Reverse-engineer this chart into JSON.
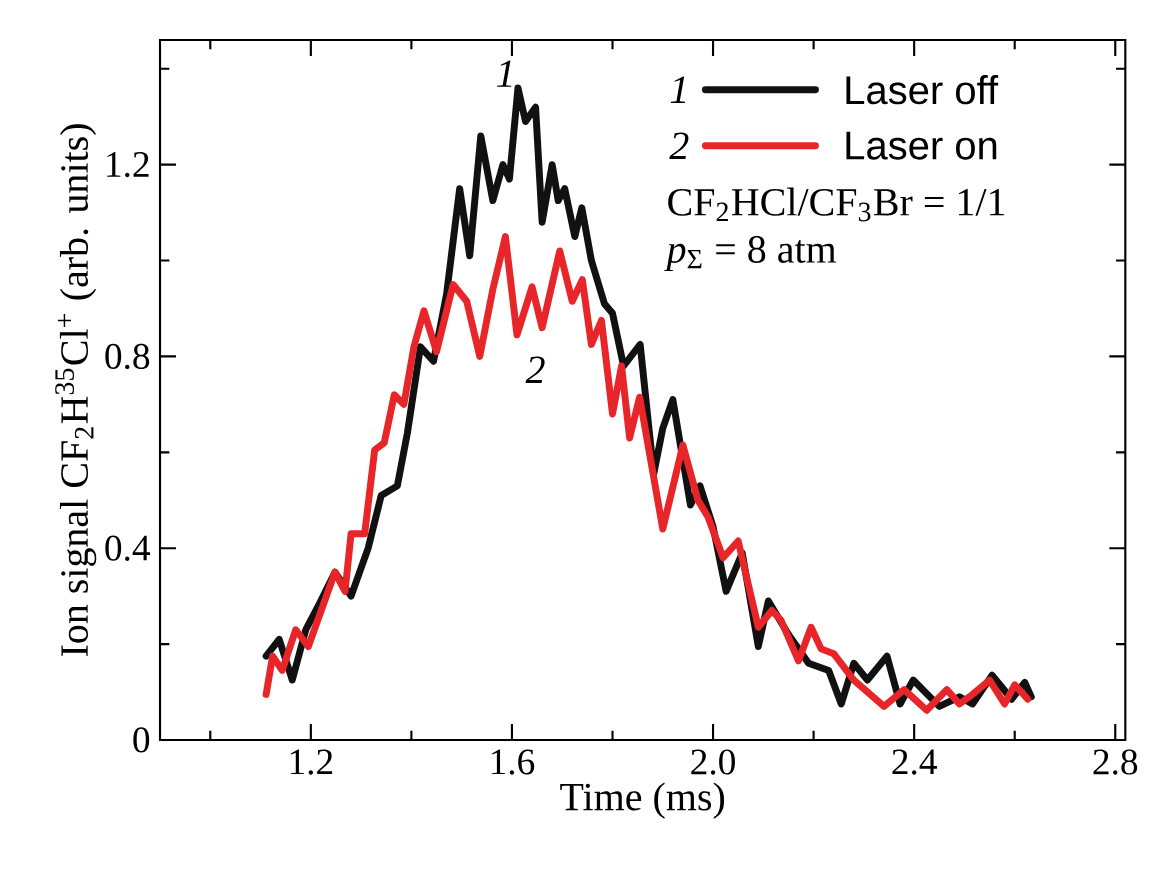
{
  "chart_data": {
    "type": "line",
    "xlabel": "Time (ms)",
    "ylabel": "Ion signal CF$_{2}$H$^{35}$Cl$^{+}$ (arb. units)",
    "xlim": [
      0.9,
      2.82
    ],
    "ylim": [
      0,
      1.46
    ],
    "xticks": [
      {
        "value": 1.0,
        "label": null
      },
      1.2,
      {
        "value": 1.4,
        "label": null
      },
      1.6,
      {
        "value": 1.8,
        "label": null
      },
      {
        "value": 2.0,
        "label": "2.0"
      },
      {
        "value": 2.2,
        "label": null
      },
      2.4,
      {
        "value": 2.6,
        "label": null
      },
      2.8
    ],
    "yticks": [
      0,
      {
        "value": 0.2,
        "label": null
      },
      0.4,
      {
        "value": 0.6,
        "label": null
      },
      0.8,
      {
        "value": 1.0,
        "label": null
      },
      1.2,
      {
        "value": 1.4,
        "label": null
      }
    ],
    "legend": "top right",
    "annotations": [
      "1",
      "2",
      "1",
      "2",
      "CF$_{2}$HCl/CF$_{3}$Br = 1/1",
      "*p*$_{Σ}$ = 8 atm"
    ],
    "series": [
      {
        "name": "Laser off",
        "color": "#111111",
        "x": [
          1.111,
          1.137,
          1.163,
          1.19,
          1.215,
          1.248,
          1.28,
          1.314,
          1.34,
          1.372,
          1.392,
          1.418,
          1.444,
          1.47,
          1.496,
          1.516,
          1.538,
          1.562,
          1.582,
          1.595,
          1.612,
          1.627,
          1.647,
          1.66,
          1.68,
          1.692,
          1.705,
          1.725,
          1.739,
          1.758,
          1.784,
          1.8,
          1.822,
          1.855,
          1.882,
          1.9,
          1.92,
          1.955,
          1.974,
          2.0,
          2.026,
          2.058,
          2.09,
          2.11,
          2.15,
          2.19,
          2.23,
          2.255,
          2.28,
          2.307,
          2.346,
          2.372,
          2.398,
          2.45,
          2.49,
          2.516,
          2.555,
          2.594,
          2.62,
          2.633
        ],
        "values": [
          0.175,
          0.21,
          0.125,
          0.23,
          0.28,
          0.35,
          0.3,
          0.4,
          0.51,
          0.53,
          0.64,
          0.82,
          0.79,
          0.93,
          1.15,
          1.01,
          1.26,
          1.125,
          1.2,
          1.17,
          1.36,
          1.29,
          1.32,
          1.08,
          1.2,
          1.125,
          1.15,
          1.05,
          1.11,
          1.0,
          0.91,
          0.89,
          0.78,
          0.825,
          0.555,
          0.65,
          0.71,
          0.49,
          0.53,
          0.445,
          0.31,
          0.39,
          0.195,
          0.29,
          0.22,
          0.16,
          0.145,
          0.075,
          0.16,
          0.125,
          0.175,
          0.075,
          0.125,
          0.07,
          0.09,
          0.075,
          0.135,
          0.085,
          0.12,
          0.09
        ]
      },
      {
        "name": "Laser on",
        "color": "#e8262a",
        "x": [
          1.111,
          1.124,
          1.143,
          1.17,
          1.195,
          1.248,
          1.268,
          1.28,
          1.307,
          1.327,
          1.346,
          1.366,
          1.385,
          1.405,
          1.425,
          1.45,
          1.483,
          1.51,
          1.536,
          1.562,
          1.587,
          1.61,
          1.64,
          1.66,
          1.695,
          1.72,
          1.74,
          1.758,
          1.778,
          1.8,
          1.818,
          1.834,
          1.854,
          1.9,
          1.94,
          1.97,
          1.99,
          2.02,
          2.05,
          2.09,
          2.117,
          2.135,
          2.17,
          2.195,
          2.215,
          2.24,
          2.28,
          2.34,
          2.38,
          2.425,
          2.465,
          2.49,
          2.516,
          2.55,
          2.58,
          2.6,
          2.626
        ],
        "values": [
          0.095,
          0.175,
          0.145,
          0.23,
          0.195,
          0.35,
          0.31,
          0.43,
          0.43,
          0.605,
          0.62,
          0.72,
          0.7,
          0.82,
          0.895,
          0.81,
          0.95,
          0.915,
          0.8,
          0.94,
          1.05,
          0.845,
          0.945,
          0.86,
          1.02,
          0.915,
          0.96,
          0.825,
          0.875,
          0.68,
          0.78,
          0.63,
          0.715,
          0.44,
          0.615,
          0.5,
          0.465,
          0.38,
          0.415,
          0.235,
          0.27,
          0.25,
          0.165,
          0.235,
          0.19,
          0.18,
          0.125,
          0.07,
          0.105,
          0.062,
          0.105,
          0.075,
          0.095,
          0.125,
          0.075,
          0.115,
          0.085
        ]
      }
    ]
  }
}
